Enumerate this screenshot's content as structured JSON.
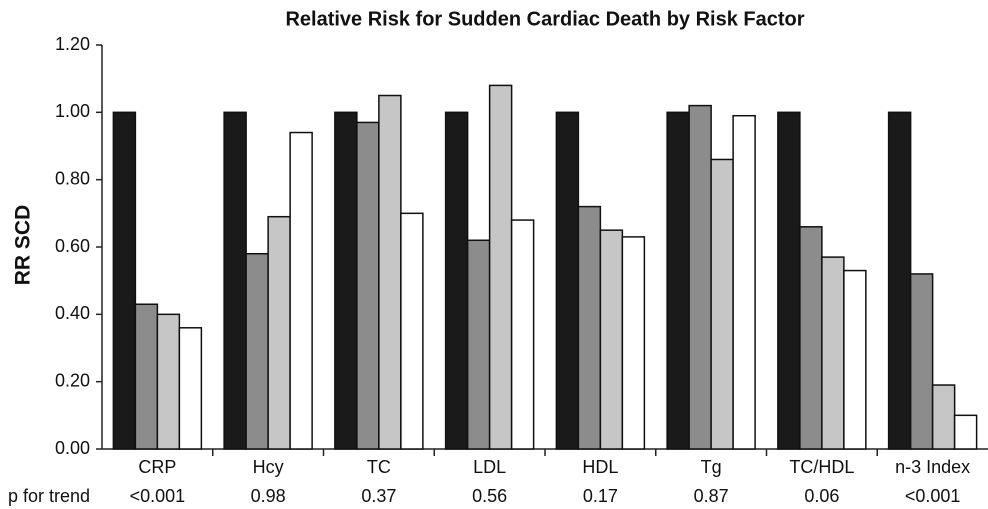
{
  "chart_data": {
    "type": "bar",
    "title": "Relative Risk for Sudden Cardiac Death by Risk Factor",
    "y_label": "RR SCD",
    "categories": [
      "CRP",
      "Hcy",
      "TC",
      "LDL",
      "HDL",
      "Tg",
      "TC/HDL",
      "n-3 Index"
    ],
    "series": [
      {
        "color": "#1a1a1a",
        "values": [
          1.0,
          1.0,
          1.0,
          1.0,
          1.0,
          1.0,
          1.0,
          1.0
        ]
      },
      {
        "color": "#8c8c8c",
        "values": [
          0.43,
          0.58,
          0.97,
          0.62,
          0.72,
          1.02,
          0.66,
          0.52
        ]
      },
      {
        "color": "#c6c6c6",
        "values": [
          0.4,
          0.69,
          1.05,
          1.08,
          0.65,
          0.86,
          0.57,
          0.19
        ]
      },
      {
        "color": "#ffffff",
        "values": [
          0.36,
          0.94,
          0.7,
          0.68,
          0.63,
          0.99,
          0.53,
          0.1
        ]
      }
    ],
    "ylim": [
      0,
      1.2
    ],
    "yticks": [
      {
        "value": 0,
        "label": "0.00"
      },
      {
        "value": 0.2,
        "label": "0.20"
      },
      {
        "value": 0.4,
        "label": "0.40"
      },
      {
        "value": 0.6,
        "label": "0.60"
      },
      {
        "value": 0.8,
        "label": "0.80"
      },
      {
        "value": 1.0,
        "label": "1.00"
      },
      {
        "value": 1.2,
        "label": "1.20"
      }
    ],
    "grid": false,
    "p_for_trend": {
      "label": "p for trend",
      "values": [
        "<0.001",
        "0.98",
        "0.37",
        "0.56",
        "0.17",
        "0.87",
        "0.06",
        "<0.001"
      ]
    }
  }
}
